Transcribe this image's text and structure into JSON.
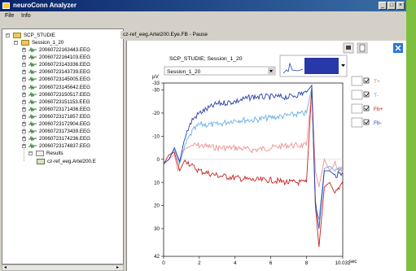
{
  "window": {
    "title": "neuroConn Analyzer",
    "min": "_",
    "max": "□",
    "close": "×"
  },
  "menu": {
    "file": "File",
    "info": "Info"
  },
  "tree": {
    "root": "SCP_STUDIE",
    "session": "Session_1_20",
    "files": [
      "20060722163443.EEG",
      "20060722164103.EEG",
      "20060723143336.EEG",
      "20060723143739.EEG",
      "20060723145005.EEG",
      "20060723145642.EEG",
      "20060723150517.EEG",
      "20060723151153.EEG",
      "20060723171436.EEG",
      "20060723171857.EEG",
      "20060723172904.EEG",
      "20060723173439.EEG",
      "20060723174236.EEG",
      "20060723174837.EEG"
    ],
    "results": "Results",
    "result_item": "cz-ref_eeg.Artel200.E"
  },
  "doc": {
    "tab": "cz-ref_eeg.Artel200.Eye.FB - Pause",
    "plot_title": "SCP_STUDIE; Session_1_20",
    "session_select": "Session_1_20",
    "y_unit": "µV",
    "x_unit": "sec",
    "legend": [
      {
        "label": "T+",
        "color": "#e07070"
      },
      {
        "label": "T-",
        "color": "#5aa0e0"
      },
      {
        "label": "Fb+",
        "color": "#c01010"
      },
      {
        "label": "Fb-",
        "color": "#1f3fa0"
      }
    ]
  },
  "chart_data": {
    "type": "line",
    "y_ticks": [
      "-33",
      "-30",
      "-20",
      "-10",
      "0",
      "10",
      "20",
      "30",
      "42"
    ],
    "x_ticks": [
      "0",
      "2",
      "4",
      "6",
      "8",
      "10.031"
    ],
    "xlim": [
      0,
      10.031
    ],
    "ylim": [
      -33,
      42
    ],
    "y_inverted": true,
    "series": [
      {
        "name": "T+",
        "color": "#f09090",
        "x": [
          0,
          0.3,
          0.6,
          0.8,
          1.0,
          1.3,
          1.6,
          2,
          3,
          4,
          5,
          6,
          7,
          8,
          8.3,
          8.5,
          8.7,
          9,
          9.3,
          9.6,
          10,
          10.031
        ],
        "y": [
          2,
          0,
          -2,
          5,
          -3,
          -5,
          -6,
          -6,
          -5,
          -5,
          -4,
          -5,
          -6,
          -6,
          -30,
          5,
          12,
          0,
          5,
          2,
          6,
          5
        ]
      },
      {
        "name": "T-",
        "color": "#6aaee8",
        "x": [
          0,
          0.3,
          0.6,
          0.9,
          1.2,
          1.6,
          2,
          3,
          4,
          5,
          6,
          7,
          8,
          8.3,
          8.5,
          8.7,
          9,
          9.3,
          9.6,
          10,
          10.031
        ],
        "y": [
          2,
          0,
          -4,
          2,
          -6,
          -12,
          -15,
          -15,
          -17,
          -17,
          -18,
          -19,
          -20,
          -31,
          20,
          26,
          4,
          3,
          5,
          4,
          4
        ]
      },
      {
        "name": "Fb+",
        "color": "#c82020",
        "x": [
          0,
          0.3,
          0.6,
          0.9,
          1.2,
          1.6,
          2,
          3,
          4,
          5,
          6,
          7,
          8,
          8.3,
          8.5,
          8.7,
          9,
          9.3,
          9.6,
          10,
          10.031
        ],
        "y": [
          2,
          -2,
          -3,
          5,
          0,
          3,
          5,
          7,
          8,
          9,
          9,
          10,
          10,
          -31,
          20,
          38,
          12,
          10,
          15,
          10,
          11
        ]
      },
      {
        "name": "Fb-",
        "color": "#2a40a8",
        "x": [
          0,
          0.3,
          0.6,
          0.9,
          1.2,
          1.6,
          2,
          3,
          4,
          5,
          6,
          7,
          8,
          8.3,
          8.5,
          8.7,
          9,
          9.3,
          9.6,
          10,
          10.031
        ],
        "y": [
          2,
          0,
          -5,
          1,
          -10,
          -17,
          -20,
          -24,
          -25,
          -27,
          -27,
          -27,
          -29,
          -32,
          18,
          30,
          5,
          5,
          7,
          6,
          6
        ]
      }
    ]
  }
}
